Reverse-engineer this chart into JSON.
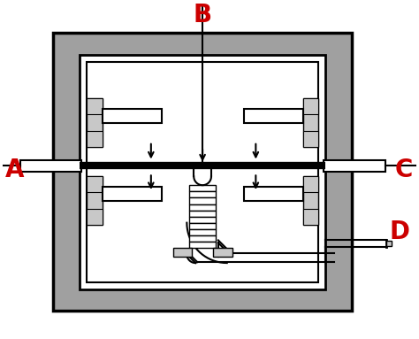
{
  "label_A": "A",
  "label_B": "B",
  "label_C": "C",
  "label_D": "D",
  "label_color": "#cc0000",
  "line_color": "#000000",
  "gray_fill": "#a0a0a0",
  "light_gray": "#c8c8c8",
  "white": "#ffffff",
  "background": "#ffffff",
  "figsize": [
    4.74,
    3.83
  ],
  "dpi": 100
}
